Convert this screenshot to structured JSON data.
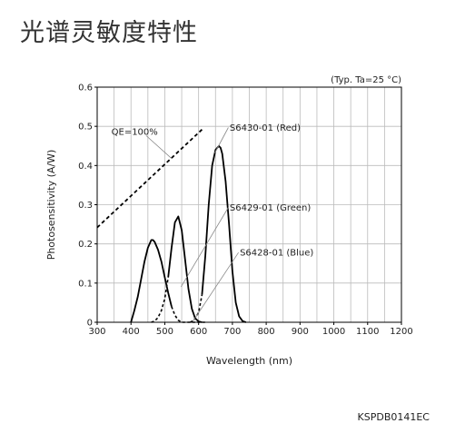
{
  "page": {
    "heading": "光谱灵敏度特性",
    "footer_code": "KSPDB0141EC"
  },
  "chart_data": {
    "type": "line",
    "xlabel": "Wavelength (nm)",
    "ylabel": "Photosensitivity (A/W)",
    "xlim": [
      300,
      1200
    ],
    "ylim": [
      0,
      0.6
    ],
    "x_ticks": [
      300,
      400,
      500,
      600,
      700,
      800,
      900,
      1000,
      1100,
      1200
    ],
    "y_ticks": [
      0,
      0.1,
      0.2,
      0.3,
      0.4,
      0.5,
      0.6
    ],
    "y_tick_labels": [
      "0",
      "0.1",
      "0.2",
      "0.3",
      "0.4",
      "0.5",
      "0.6"
    ],
    "x_grid_step": 50,
    "grid": true,
    "condition_note": "(Typ. Ta=25 °C)",
    "series": [
      {
        "name": "QE=100%",
        "style": "dashed",
        "x": [
          300,
          610
        ],
        "y": [
          0.2419,
          0.4919
        ]
      },
      {
        "name": "S6428-01 (Blue)",
        "style": "solid",
        "x": [
          400,
          410,
          420,
          430,
          440,
          450,
          460,
          465,
          470,
          480,
          490,
          500,
          510,
          520,
          530,
          540,
          550,
          560,
          570,
          580,
          590,
          600,
          610,
          620
        ],
        "y": [
          0,
          0.03,
          0.065,
          0.11,
          0.155,
          0.19,
          0.21,
          0.21,
          0.205,
          0.185,
          0.155,
          0.115,
          0.075,
          0.04,
          0.018,
          0.005,
          0,
          0,
          0,
          0,
          0,
          0,
          0,
          0
        ],
        "dash_from_index": 13
      },
      {
        "name": "S6429-01 (Green)",
        "style": "solid",
        "x": [
          460,
          470,
          480,
          490,
          500,
          510,
          520,
          530,
          540,
          550,
          560,
          570,
          580,
          590,
          600,
          610
        ],
        "y": [
          0,
          0.003,
          0.012,
          0.03,
          0.06,
          0.115,
          0.19,
          0.255,
          0.27,
          0.235,
          0.16,
          0.085,
          0.035,
          0.01,
          0.002,
          0
        ],
        "dash_until_index": 5
      },
      {
        "name": "S6430-01 (Red)",
        "style": "solid",
        "x": [
          575,
          580,
          590,
          600,
          610,
          620,
          630,
          640,
          650,
          660,
          665,
          670,
          680,
          690,
          700,
          710,
          720,
          730,
          740
        ],
        "y": [
          0,
          0.002,
          0.01,
          0.025,
          0.07,
          0.17,
          0.3,
          0.4,
          0.44,
          0.45,
          0.445,
          0.43,
          0.36,
          0.25,
          0.13,
          0.05,
          0.015,
          0.003,
          0
        ],
        "dash_until_index": 4
      }
    ],
    "annotations": [
      {
        "text": "QE=100%",
        "x": 342,
        "y": 0.487,
        "leader": [
          [
            445,
            0.476
          ],
          [
            520,
            0.418
          ]
        ]
      },
      {
        "text": "S6430-01 (Red)",
        "x": 692,
        "y": 0.497,
        "leader": [
          [
            688,
            0.497
          ],
          [
            648,
            0.432
          ]
        ]
      },
      {
        "text": "S6429-01 (Green)",
        "x": 692,
        "y": 0.293,
        "leader": [
          [
            688,
            0.293
          ],
          [
            548,
            0.09
          ]
        ]
      },
      {
        "text": "S6428-01 (Blue)",
        "x": 722,
        "y": 0.178,
        "leader": [
          [
            718,
            0.178
          ],
          [
            583,
            0.002
          ]
        ]
      }
    ]
  }
}
